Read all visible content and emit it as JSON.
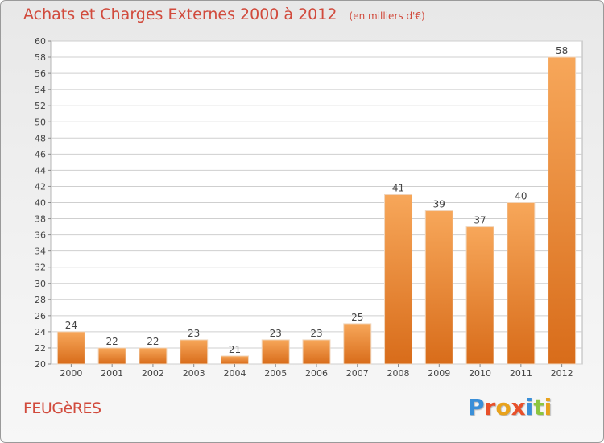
{
  "header": {
    "title": "Achats et Charges Externes 2000 à 2012",
    "unit": "(en milliers d'€)"
  },
  "footer": {
    "commune": "FEUGèRES",
    "brand": "Proxiti"
  },
  "colors": {
    "title": "#d14a3c",
    "bar_light": "#f7a75a",
    "bar_dark": "#d86c1a",
    "grid": "#cfcfcf",
    "brand_letters": [
      "#3a8fd8",
      "#e8502a",
      "#e8a21c",
      "#e8502a",
      "#3a8fd8",
      "#8cc63f",
      "#e8a21c"
    ]
  },
  "chart_data": {
    "type": "bar",
    "title": "Achats et Charges Externes 2000 à 2012",
    "subtitle": "(en milliers d'€)",
    "xlabel": "",
    "ylabel": "",
    "categories": [
      "2000",
      "2001",
      "2002",
      "2003",
      "2004",
      "2005",
      "2006",
      "2007",
      "2008",
      "2009",
      "2010",
      "2011",
      "2012"
    ],
    "values": [
      24,
      22,
      22,
      23,
      21,
      23,
      23,
      25,
      41,
      39,
      37,
      40,
      58
    ],
    "ylim": [
      20,
      60
    ],
    "yticks": [
      20,
      22,
      24,
      26,
      28,
      30,
      32,
      34,
      36,
      38,
      40,
      42,
      44,
      46,
      48,
      50,
      52,
      54,
      56,
      58,
      60
    ],
    "grid": true,
    "data_labels": true
  }
}
